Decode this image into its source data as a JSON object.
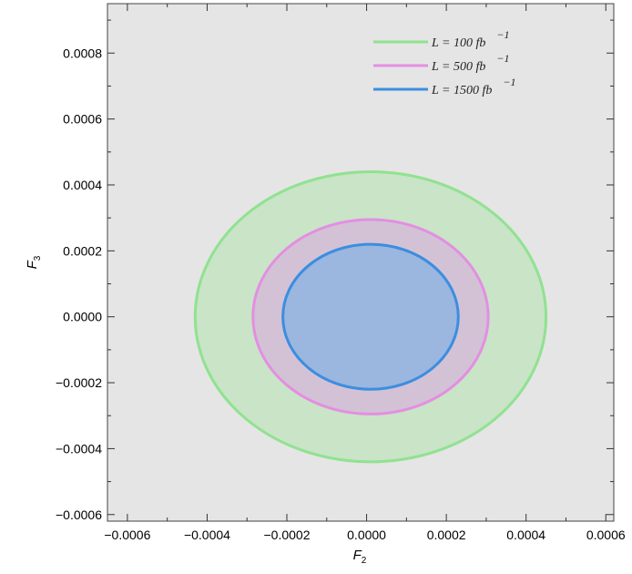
{
  "chart_data": {
    "type": "contour",
    "xlabel": "F2",
    "ylabel": "F3",
    "xlim": [
      -0.00065,
      0.00062
    ],
    "ylim": [
      -0.00062,
      0.00095
    ],
    "xticks": [
      "−0.0006",
      "−0.0004",
      "−0.0002",
      "0.0000",
      "0.0002",
      "0.0004",
      "0.0006"
    ],
    "xtick_values": [
      -0.0006,
      -0.0004,
      -0.0002,
      0.0,
      0.0002,
      0.0004,
      0.0006
    ],
    "yticks": [
      "−0.0006",
      "−0.0004",
      "−0.0002",
      "0.0000",
      "0.0002",
      "0.0004",
      "0.0006",
      "0.0008"
    ],
    "ytick_values": [
      -0.0006,
      -0.0004,
      -0.0002,
      0.0,
      0.0002,
      0.0004,
      0.0006,
      0.0008
    ],
    "background_color": "#e5e5e5",
    "legend_position": "top-right",
    "series": [
      {
        "name": "L = 100 fb −1",
        "label_main": "L = 100 fb",
        "label_sup": "−1",
        "center": [
          1e-05,
          0.0
        ],
        "semi_axes": [
          0.00044,
          0.00044
        ],
        "stroke": "#90e290",
        "fill": "#c9e4c7"
      },
      {
        "name": "L = 500 fb −1",
        "label_main": "L = 500 fb",
        "label_sup": "−1",
        "center": [
          1e-05,
          0.0
        ],
        "semi_axes": [
          0.000295,
          0.000295
        ],
        "stroke": "#e48ee2",
        "fill": "#d3c2d6"
      },
      {
        "name": "L = 1500 fb −1",
        "label_main": "L = 1500 fb",
        "label_sup": "−1",
        "center": [
          1e-05,
          0.0
        ],
        "semi_axes": [
          0.00022,
          0.00022
        ],
        "stroke": "#3b8ee0",
        "fill": "#9bb6df"
      }
    ]
  }
}
